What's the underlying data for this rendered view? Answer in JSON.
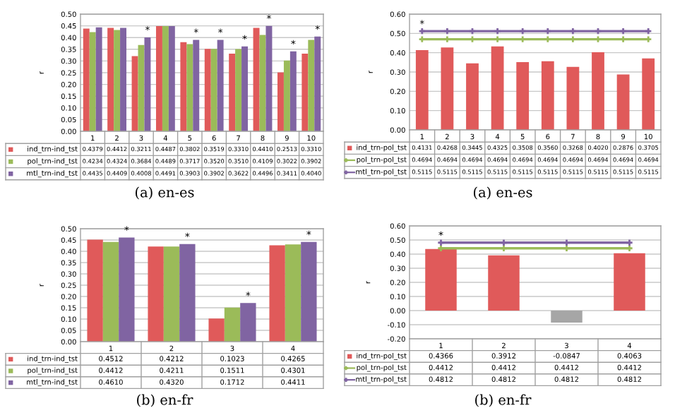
{
  "chart_data": [
    {
      "type": "bar",
      "ylabel": "r",
      "categories": [
        "1",
        "2",
        "3",
        "4",
        "5",
        "6",
        "7",
        "8",
        "9",
        "10"
      ],
      "grid": "y",
      "legend": "bottom",
      "ylim": [
        0,
        0.5
      ],
      "yticks": [
        {
          "value": 0,
          "label": "0.00"
        },
        {
          "value": 0.05,
          "label": "0.05"
        },
        {
          "value": 0.1,
          "label": "0.10"
        },
        {
          "value": 0.15,
          "label": "0.15"
        },
        {
          "value": 0.2,
          "label": "0.20"
        },
        {
          "value": 0.25,
          "label": "0.25"
        },
        {
          "value": 0.3,
          "label": "0.30"
        },
        {
          "value": 0.35,
          "label": "0.35"
        },
        {
          "value": 0.4,
          "label": "0.40"
        },
        {
          "value": 0.45,
          "label": "0.45"
        },
        {
          "value": 0.5,
          "label": "0.50"
        }
      ],
      "series": [
        {
          "name": "ind_trn-ind_tst",
          "color": "#e05a5a",
          "values": [
            0.4379,
            0.4412,
            0.3211,
            0.4487,
            0.3802,
            0.3519,
            0.331,
            0.441,
            0.2513,
            0.331
          ],
          "value_labels": [
            "0.4379",
            "0.4412",
            "0.3211",
            "0.4487",
            "0.3802",
            "0.3519",
            "0.3310",
            "0.4410",
            "0.2513",
            "0.3310"
          ]
        },
        {
          "name": "pol_trn-ind_tst",
          "color": "#9bbb59",
          "values": [
            0.4234,
            0.4324,
            0.3684,
            0.4489,
            0.3717,
            0.352,
            0.351,
            0.4109,
            0.3022,
            0.3902
          ],
          "value_labels": [
            "0.4234",
            "0.4324",
            "0.3684",
            "0.4489",
            "0.3717",
            "0.3520",
            "0.3510",
            "0.4109",
            "0.3022",
            "0.3902"
          ]
        },
        {
          "name": "mtl_trn-ind_tst",
          "color": "#8064a2",
          "values": [
            0.4435,
            0.4409,
            0.4008,
            0.4491,
            0.3903,
            0.3902,
            0.3622,
            0.4496,
            0.3411,
            0.404
          ],
          "value_labels": [
            "0.4435",
            "0.4409",
            "0.4008",
            "0.4491",
            "0.3903",
            "0.3902",
            "0.3622",
            "0.4496",
            "0.3411",
            "0.4040"
          ]
        }
      ],
      "annotations": [
        {
          "text": "*",
          "x": "3",
          "y": 0.4008
        },
        {
          "text": "*",
          "x": "5",
          "y": 0.3903
        },
        {
          "text": "*",
          "x": "6",
          "y": 0.3902
        },
        {
          "text": "*",
          "x": "7",
          "y": 0.3622
        },
        {
          "text": "*",
          "x": "8",
          "y": 0.4496
        },
        {
          "text": "*",
          "x": "9",
          "y": 0.3411
        },
        {
          "text": "*",
          "x": "10",
          "y": 0.404
        },
        "(a) en-es"
      ]
    },
    {
      "type": "bar",
      "ylabel": "r",
      "categories": [
        "1",
        "2",
        "3",
        "4",
        "5",
        "6",
        "7",
        "8",
        "9",
        "10"
      ],
      "grid": "y",
      "legend": "bottom",
      "ylim": [
        0,
        0.6
      ],
      "yticks": [
        {
          "value": 0,
          "label": "0.00"
        },
        {
          "value": 0.1,
          "label": "0.10"
        },
        {
          "value": 0.2,
          "label": "0.20"
        },
        {
          "value": 0.3,
          "label": "0.30"
        },
        {
          "value": 0.4,
          "label": "0.40"
        },
        {
          "value": 0.5,
          "label": "0.50"
        },
        {
          "value": 0.6,
          "label": "0.60"
        }
      ],
      "series": [
        {
          "name": "ind_trn-pol_tst",
          "color": "#e05a5a",
          "values": [
            0.4131,
            0.4268,
            0.3445,
            0.4325,
            0.3508,
            0.356,
            0.3268,
            0.402,
            0.2876,
            0.3705
          ],
          "value_labels": [
            "0.4131",
            "0.4268",
            "0.3445",
            "0.4325",
            "0.3508",
            "0.3560",
            "0.3268",
            "0.4020",
            "0.2876",
            "0.3705"
          ]
        },
        {
          "name": "pol_trn-pol_tst",
          "type": "line",
          "marker": "cross",
          "color": "#9bbb59",
          "values": [
            0.4694,
            0.4694,
            0.4694,
            0.4694,
            0.4694,
            0.4694,
            0.4694,
            0.4694,
            0.4694,
            0.4694
          ],
          "value_labels": [
            "0.4694",
            "0.4694",
            "0.4694",
            "0.4694",
            "0.4694",
            "0.4694",
            "0.4694",
            "0.4694",
            "0.4694",
            "0.4694"
          ]
        },
        {
          "name": "mtl_trn-pol_tst",
          "type": "line",
          "marker": "cross",
          "color": "#8064a2",
          "values": [
            0.5115,
            0.5115,
            0.5115,
            0.5115,
            0.5115,
            0.5115,
            0.5115,
            0.5115,
            0.5115,
            0.5115
          ],
          "value_labels": [
            "0.5115",
            "0.5115",
            "0.5115",
            "0.5115",
            "0.5115",
            "0.5115",
            "0.5115",
            "0.5115",
            "0.5115",
            "0.5115"
          ]
        }
      ],
      "annotations": [
        {
          "text": "*",
          "x": "1",
          "y": 0.5115
        },
        "(a) en-es"
      ]
    },
    {
      "type": "bar",
      "ylabel": "r",
      "categories": [
        "1",
        "2",
        "3",
        "4"
      ],
      "grid": "y",
      "legend": "bottom",
      "ylim": [
        0,
        0.5
      ],
      "yticks": [
        {
          "value": 0,
          "label": "0.00"
        },
        {
          "value": 0.05,
          "label": "0.05"
        },
        {
          "value": 0.1,
          "label": "0.10"
        },
        {
          "value": 0.15,
          "label": "0.15"
        },
        {
          "value": 0.2,
          "label": "0.20"
        },
        {
          "value": 0.25,
          "label": "0.25"
        },
        {
          "value": 0.3,
          "label": "0.30"
        },
        {
          "value": 0.35,
          "label": "0.35"
        },
        {
          "value": 0.4,
          "label": "0.40"
        },
        {
          "value": 0.45,
          "label": "0.45"
        },
        {
          "value": 0.5,
          "label": "0.50"
        }
      ],
      "series": [
        {
          "name": "ind_trn-ind_tst",
          "color": "#e05a5a",
          "values": [
            0.4512,
            0.4212,
            0.1023,
            0.4265
          ],
          "value_labels": [
            "0.4512",
            "0.4212",
            "0.1023",
            "0.4265"
          ]
        },
        {
          "name": "pol_trn-ind_tst",
          "color": "#9bbb59",
          "values": [
            0.4412,
            0.4211,
            0.1511,
            0.4301
          ],
          "value_labels": [
            "0.4412",
            "0.4211",
            "0.1511",
            "0.4301"
          ]
        },
        {
          "name": "mtl_trn-ind_tst",
          "color": "#8064a2",
          "values": [
            0.461,
            0.432,
            0.1712,
            0.4411
          ],
          "value_labels": [
            "0.4610",
            "0.4320",
            "0.1712",
            "0.4411"
          ]
        }
      ],
      "annotations": [
        {
          "text": "*",
          "x": "1",
          "y": 0.461
        },
        {
          "text": "*",
          "x": "2",
          "y": 0.432
        },
        {
          "text": "*",
          "x": "3",
          "y": 0.1712
        },
        {
          "text": "*",
          "x": "4",
          "y": 0.4411
        },
        "(b) en-fr"
      ]
    },
    {
      "type": "bar",
      "ylabel": "r",
      "categories": [
        "1",
        "2",
        "3",
        "4"
      ],
      "grid": "y",
      "legend": "bottom",
      "ylim": [
        -0.2,
        0.6
      ],
      "yticks": [
        {
          "value": -0.2,
          "label": "-0.20"
        },
        {
          "value": -0.1,
          "label": "-0.10"
        },
        {
          "value": 0,
          "label": "0.00"
        },
        {
          "value": 0.1,
          "label": "0.10"
        },
        {
          "value": 0.2,
          "label": "0.20"
        },
        {
          "value": 0.3,
          "label": "0.30"
        },
        {
          "value": 0.4,
          "label": "0.40"
        },
        {
          "value": 0.5,
          "label": "0.50"
        },
        {
          "value": 0.6,
          "label": "0.60"
        }
      ],
      "series": [
        {
          "name": "ind_trn-pol_tst",
          "colors": [
            "#e05a5a",
            "#e05a5a",
            "#a6a6a6",
            "#e05a5a"
          ],
          "values": [
            0.4366,
            0.3912,
            -0.0847,
            0.4063
          ],
          "value_labels": [
            "0.4366",
            "0.3912",
            "-0.0847",
            "0.4063"
          ]
        },
        {
          "name": "pol_trn-pol_tst",
          "type": "line",
          "marker": "cross",
          "color": "#9bbb59",
          "values": [
            0.4412,
            0.4412,
            0.4412,
            0.4412
          ],
          "value_labels": [
            "0.4412",
            "0.4412",
            "0.4412",
            "0.4412"
          ]
        },
        {
          "name": "mtl_trn-pol_tst",
          "type": "line",
          "marker": "cross",
          "color": "#8064a2",
          "values": [
            0.4812,
            0.4812,
            0.4812,
            0.4812
          ],
          "value_labels": [
            "0.4812",
            "0.4812",
            "0.4812",
            "0.4812"
          ]
        }
      ],
      "annotations": [
        {
          "text": "*",
          "x": "1",
          "y": 0.4812
        },
        "(b) en-fr"
      ]
    }
  ]
}
